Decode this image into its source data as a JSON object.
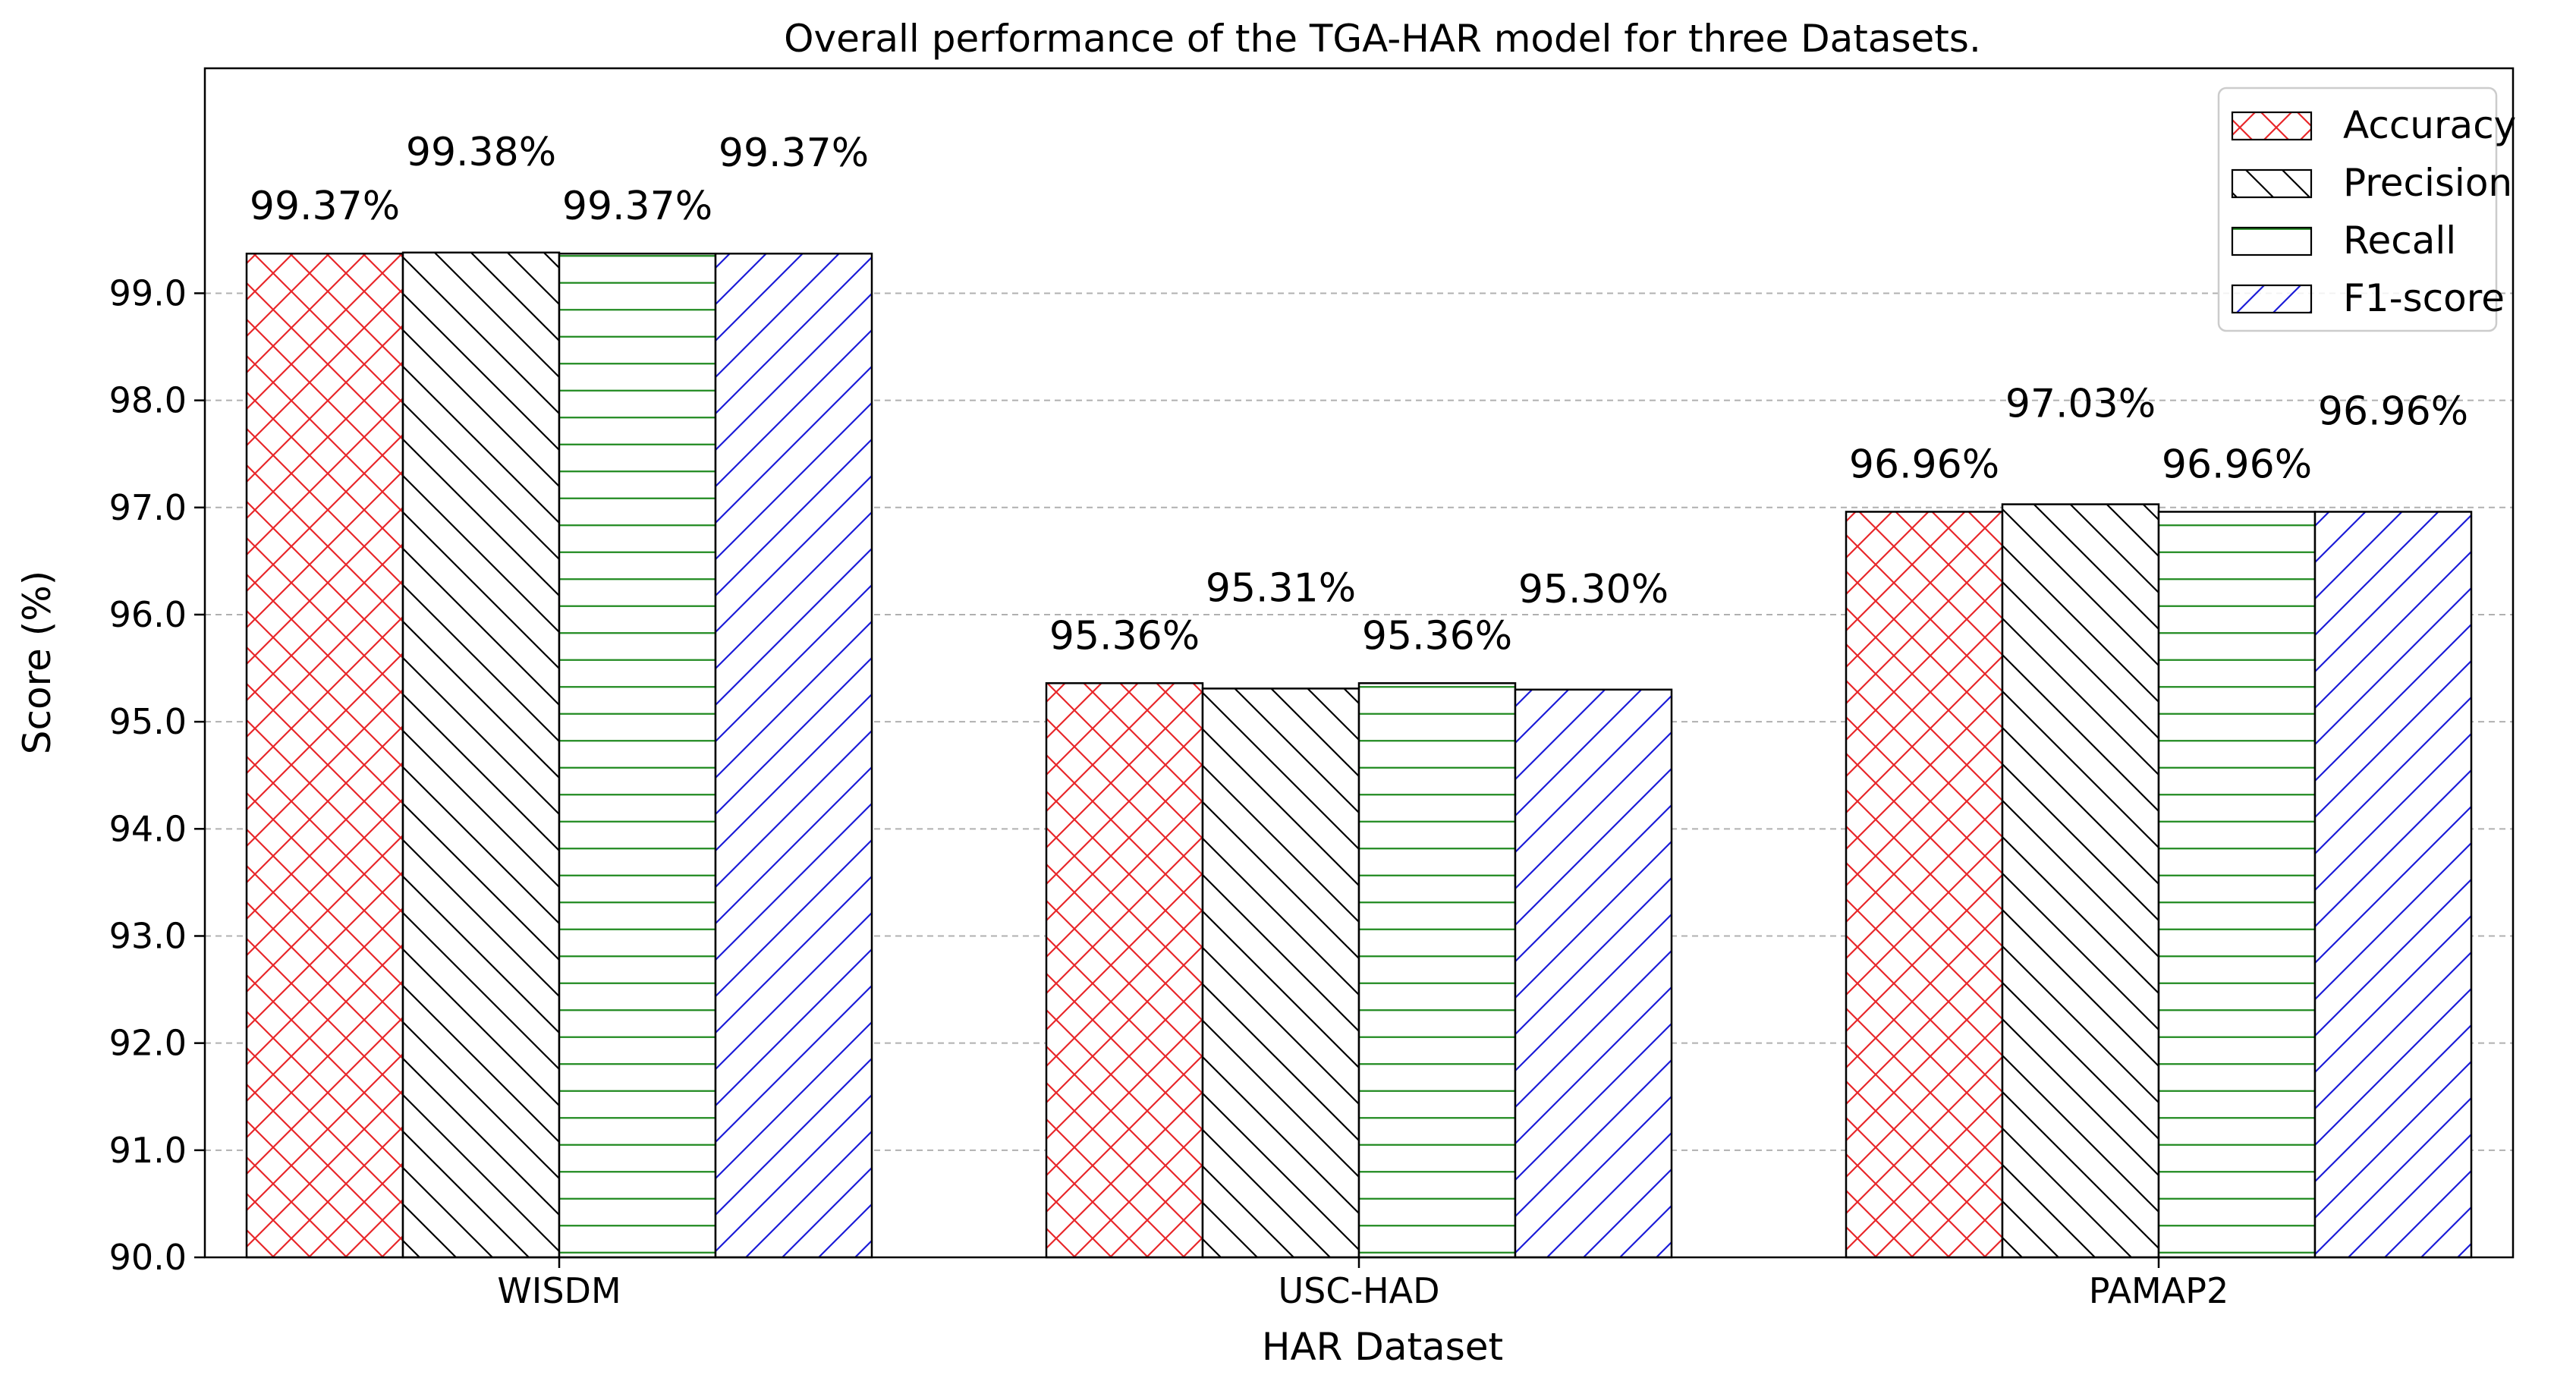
{
  "chart_data": {
    "type": "bar",
    "title": "Overall performance of the TGA-HAR model for three Datasets.",
    "xlabel": "HAR Dataset",
    "ylabel": "Score (%)",
    "ylim": [
      90,
      101.1
    ],
    "yticks": [
      90.0,
      91.0,
      92.0,
      93.0,
      94.0,
      95.0,
      96.0,
      97.0,
      98.0,
      99.0
    ],
    "ytick_labels": [
      "90.0",
      "91.0",
      "92.0",
      "93.0",
      "94.0",
      "95.0",
      "96.0",
      "97.0",
      "98.0",
      "99.0"
    ],
    "grid": true,
    "legend_position": "top-right",
    "categories": [
      "WISDM",
      "USC-HAD",
      "PAMAP2"
    ],
    "series": [
      {
        "name": "Accuracy",
        "color": "#e8272a",
        "hatch": "cross",
        "values": [
          99.37,
          95.36,
          96.96
        ],
        "labels": [
          "99.37%",
          "95.36%",
          "96.96%"
        ]
      },
      {
        "name": "Precision",
        "color": "#000000",
        "hatch": "back-diag",
        "values": [
          99.38,
          95.31,
          97.03
        ],
        "labels": [
          "99.38%",
          "95.31%",
          "97.03%"
        ]
      },
      {
        "name": "Recall",
        "color": "#1f8a1f",
        "hatch": "horizontal",
        "values": [
          99.37,
          95.36,
          96.96
        ],
        "labels": [
          "99.37%",
          "95.36%",
          "96.96%"
        ]
      },
      {
        "name": "F1-score",
        "color": "#1c1cd8",
        "hatch": "fwd-diag",
        "values": [
          99.37,
          95.3,
          96.96
        ],
        "labels": [
          "99.37%",
          "95.30%",
          "96.96%"
        ]
      }
    ]
  }
}
